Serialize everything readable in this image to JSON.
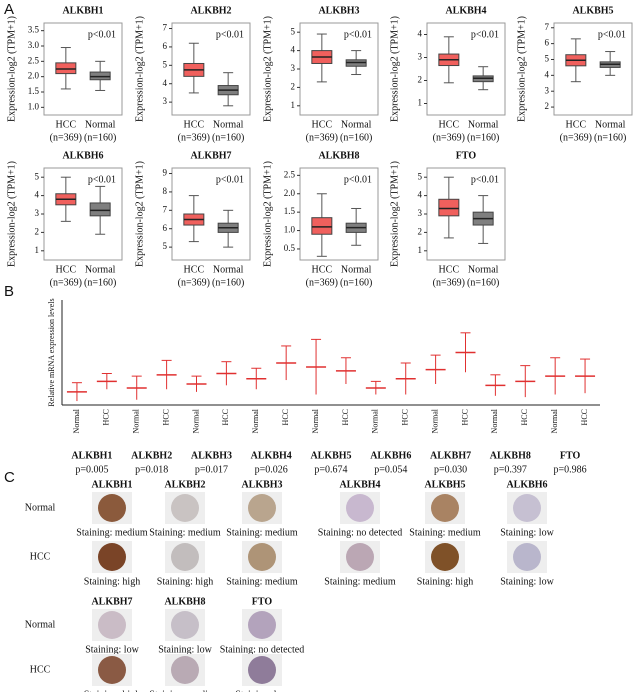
{
  "panel_labels": [
    "A",
    "B",
    "C"
  ],
  "chart_data": [
    {
      "type": "box",
      "title": "ALKBH1",
      "ylabel": "Expression-log2 (TPM+1)",
      "annotation": "p<0.01",
      "categories": [
        "HCC",
        "Normal"
      ],
      "sample_sizes": [
        "(n=369)",
        "(n=160)"
      ],
      "colors": [
        "#f0605d",
        "#7f7f7f"
      ],
      "min": [
        1.6,
        1.55
      ],
      "q1": [
        2.1,
        1.9
      ],
      "median": [
        2.25,
        2.0
      ],
      "q3": [
        2.45,
        2.15
      ],
      "max": [
        2.95,
        2.5
      ],
      "ylim": [
        0.75,
        3.75
      ],
      "yticks": [
        {
          "value": 1,
          "label": "1.0"
        },
        1.5,
        {
          "value": 2,
          "label": "2.0"
        },
        2.5,
        {
          "value": 3,
          "label": "3.0"
        },
        3.5
      ]
    },
    {
      "type": "box",
      "title": "ALKBH2",
      "ylabel": "Expression-log2 (TPM+1)",
      "annotation": "p<0.01",
      "categories": [
        "HCC",
        "Normal"
      ],
      "sample_sizes": [
        "(n=369)",
        "(n=160)"
      ],
      "colors": [
        "#f0605d",
        "#7f7f7f"
      ],
      "min": [
        3.5,
        2.8
      ],
      "q1": [
        4.4,
        3.4
      ],
      "median": [
        4.75,
        3.65
      ],
      "q3": [
        5.1,
        3.9
      ],
      "max": [
        6.2,
        4.6
      ],
      "ylim": [
        2.3,
        7.3
      ],
      "yticks": [
        3,
        4,
        5,
        6,
        7
      ]
    },
    {
      "type": "box",
      "title": "ALKBH3",
      "ylabel": "Expression-log2 (TPM+1)",
      "annotation": "p<0.01",
      "categories": [
        "HCC",
        "Normal"
      ],
      "sample_sizes": [
        "(n=369)",
        "(n=160)"
      ],
      "colors": [
        "#f0605d",
        "#7f7f7f"
      ],
      "min": [
        2.3,
        2.7
      ],
      "q1": [
        3.3,
        3.15
      ],
      "median": [
        3.65,
        3.35
      ],
      "q3": [
        4.0,
        3.5
      ],
      "max": [
        4.9,
        4.0
      ],
      "ylim": [
        0.5,
        5.5
      ],
      "yticks": [
        1,
        2,
        3,
        4,
        5
      ]
    },
    {
      "type": "box",
      "title": "ALKBH4",
      "ylabel": "Expression-log2 (TPM+1)",
      "annotation": "p<0.01",
      "categories": [
        "HCC",
        "Normal"
      ],
      "sample_sizes": [
        "(n=369)",
        "(n=160)"
      ],
      "colors": [
        "#f0605d",
        "#7f7f7f"
      ],
      "min": [
        1.9,
        1.6
      ],
      "q1": [
        2.65,
        1.95
      ],
      "median": [
        2.9,
        2.1
      ],
      "q3": [
        3.15,
        2.2
      ],
      "max": [
        3.9,
        2.6
      ],
      "ylim": [
        0.5,
        4.5
      ],
      "yticks": [
        1,
        2,
        3,
        4
      ]
    },
    {
      "type": "box",
      "title": "ALKBH5",
      "ylabel": "Expression-log2 (TPM+1)",
      "annotation": "p<0.01",
      "categories": [
        "HCC",
        "Normal"
      ],
      "sample_sizes": [
        "(n=369)",
        "(n=160)"
      ],
      "colors": [
        "#f0605d",
        "#7f7f7f"
      ],
      "min": [
        3.6,
        4.0
      ],
      "q1": [
        4.6,
        4.5
      ],
      "median": [
        4.95,
        4.7
      ],
      "q3": [
        5.3,
        4.85
      ],
      "max": [
        6.3,
        5.5
      ],
      "ylim": [
        1.5,
        7.3
      ],
      "yticks": [
        2,
        3,
        4,
        5,
        6,
        7
      ]
    },
    {
      "type": "box",
      "title": "ALKBH6",
      "ylabel": "Expression-log2 (TPM+1)",
      "annotation": "p<0.01",
      "categories": [
        "HCC",
        "Normal"
      ],
      "sample_sizes": [
        "(n=369)",
        "(n=160)"
      ],
      "colors": [
        "#f0605d",
        "#7f7f7f"
      ],
      "min": [
        2.6,
        1.9
      ],
      "q1": [
        3.5,
        2.9
      ],
      "median": [
        3.8,
        3.2
      ],
      "q3": [
        4.1,
        3.6
      ],
      "max": [
        5.0,
        4.5
      ],
      "ylim": [
        0.5,
        5.5
      ],
      "yticks": [
        1,
        2,
        3,
        4,
        5
      ]
    },
    {
      "type": "box",
      "title": "ALKBH7",
      "ylabel": "Expression-log2 (TPM+1)",
      "annotation": "p<0.01",
      "categories": [
        "HCC",
        "Normal"
      ],
      "sample_sizes": [
        "(n=369)",
        "(n=160)"
      ],
      "colors": [
        "#f0605d",
        "#7f7f7f"
      ],
      "min": [
        5.3,
        5.0
      ],
      "q1": [
        6.2,
        5.8
      ],
      "median": [
        6.5,
        6.05
      ],
      "q3": [
        6.8,
        6.3
      ],
      "max": [
        7.8,
        7.0
      ],
      "ylim": [
        4.3,
        9.3
      ],
      "yticks": [
        5,
        6,
        7,
        8,
        9
      ]
    },
    {
      "type": "box",
      "title": "ALKBH8",
      "ylabel": "Expression-log2 (TPM+1)",
      "annotation": "p<0.01",
      "categories": [
        "HCC",
        "Normal"
      ],
      "sample_sizes": [
        "(n=369)",
        "(n=160)"
      ],
      "colors": [
        "#f0605d",
        "#7f7f7f"
      ],
      "min": [
        0.3,
        0.6
      ],
      "q1": [
        0.9,
        0.95
      ],
      "median": [
        1.1,
        1.08
      ],
      "q3": [
        1.35,
        1.2
      ],
      "max": [
        2.0,
        1.6
      ],
      "ylim": [
        0.2,
        2.7
      ],
      "yticks": [
        0.5,
        {
          "value": 1,
          "label": "1.0"
        },
        1.5,
        {
          "value": 2,
          "label": "2.0"
        },
        2.5
      ]
    },
    {
      "type": "box",
      "title": "FTO",
      "ylabel": "Expression-log2 (TPM+1)",
      "annotation": "p<0.01",
      "categories": [
        "HCC",
        "Normal"
      ],
      "sample_sizes": [
        "(n=369)",
        "(n=160)"
      ],
      "colors": [
        "#f0605d",
        "#7f7f7f"
      ],
      "min": [
        1.7,
        1.4
      ],
      "q1": [
        2.9,
        2.4
      ],
      "median": [
        3.3,
        2.75
      ],
      "q3": [
        3.8,
        3.1
      ],
      "max": [
        5.0,
        4.0
      ],
      "ylim": [
        0.5,
        5.5
      ],
      "yticks": [
        1,
        2,
        3,
        4,
        5
      ]
    },
    {
      "type": "errorbar",
      "ylabel": "Relative mRNA expression levels",
      "color": "#e03030",
      "categories": [
        "Normal",
        "HCC",
        "Normal",
        "HCC",
        "Normal",
        "HCC",
        "Normal",
        "HCC",
        "Normal",
        "HCC",
        "Normal",
        "HCC",
        "Normal",
        "HCC",
        "Normal",
        "HCC",
        "Normal",
        "HCC"
      ],
      "values": [
        1.0,
        1.8,
        1.3,
        2.3,
        1.6,
        2.4,
        2.0,
        3.2,
        2.9,
        2.6,
        1.3,
        2.0,
        2.7,
        4.0,
        1.5,
        1.8,
        2.2,
        2.2
      ],
      "errors": [
        0.7,
        0.6,
        0.9,
        1.1,
        0.6,
        0.9,
        0.8,
        1.3,
        2.1,
        1.0,
        0.5,
        1.2,
        1.1,
        1.5,
        0.8,
        1.2,
        1.4,
        1.3
      ],
      "ylim": [
        0,
        8
      ],
      "groups": [
        {
          "name": "ALKBH1",
          "p": "p=0.005"
        },
        {
          "name": "ALKBH2",
          "p": "p=0.018"
        },
        {
          "name": "ALKBH3",
          "p": "p=0.017"
        },
        {
          "name": "ALKBH4",
          "p": "p=0.026"
        },
        {
          "name": "ALKBH5",
          "p": "p=0.674"
        },
        {
          "name": "ALKBH6",
          "p": "p=0.054"
        },
        {
          "name": "ALKBH7",
          "p": "p=0.030"
        },
        {
          "name": "ALKBH8",
          "p": "p=0.397"
        },
        {
          "name": "FTO",
          "p": "p=0.986"
        }
      ]
    }
  ],
  "panel_c": {
    "blocks": [
      {
        "genes": [
          "ALKBH1",
          "ALKBH2",
          "ALKBH3",
          "ALKBH4",
          "ALKBH5",
          "ALKBH6"
        ],
        "rows": [
          {
            "label": "Normal",
            "items": [
              {
                "staining": "Staining: medium",
                "color": "#8b5a3c"
              },
              {
                "staining": "Staining: medium",
                "color": "#c9c3c2"
              },
              {
                "staining": "Staining: medium",
                "color": "#b9a58e"
              },
              {
                "staining": "Staining: no detected",
                "color": "#c8b8cf"
              },
              {
                "staining": "Staining: medium",
                "color": "#a98363"
              },
              {
                "staining": "Staining: low",
                "color": "#c6c0d2"
              }
            ]
          },
          {
            "label": "HCC",
            "items": [
              {
                "staining": "Staining: high",
                "color": "#7a4427"
              },
              {
                "staining": "Staining: high",
                "color": "#c2bdbd"
              },
              {
                "staining": "Staining: medium",
                "color": "#ae9477"
              },
              {
                "staining": "Staining: medium",
                "color": "#bba7b4"
              },
              {
                "staining": "Staining: high",
                "color": "#7f5128"
              },
              {
                "staining": "Staining: low",
                "color": "#b9b6cc"
              }
            ]
          }
        ]
      },
      {
        "genes": [
          "ALKBH7",
          "ALKBH8",
          "FTO"
        ],
        "rows": [
          {
            "label": "Normal",
            "items": [
              {
                "staining": "Staining: low",
                "color": "#cabcc6"
              },
              {
                "staining": "Staining: low",
                "color": "#c6bfc8"
              },
              {
                "staining": "Staining: no detected",
                "color": "#b3a3bc"
              }
            ]
          },
          {
            "label": "HCC",
            "items": [
              {
                "staining": "Staining: high",
                "color": "#8a5a44"
              },
              {
                "staining": "Staining: medium",
                "color": "#b9aab4"
              },
              {
                "staining": "Staining: low",
                "color": "#8f7c9a"
              }
            ]
          }
        ]
      }
    ]
  }
}
